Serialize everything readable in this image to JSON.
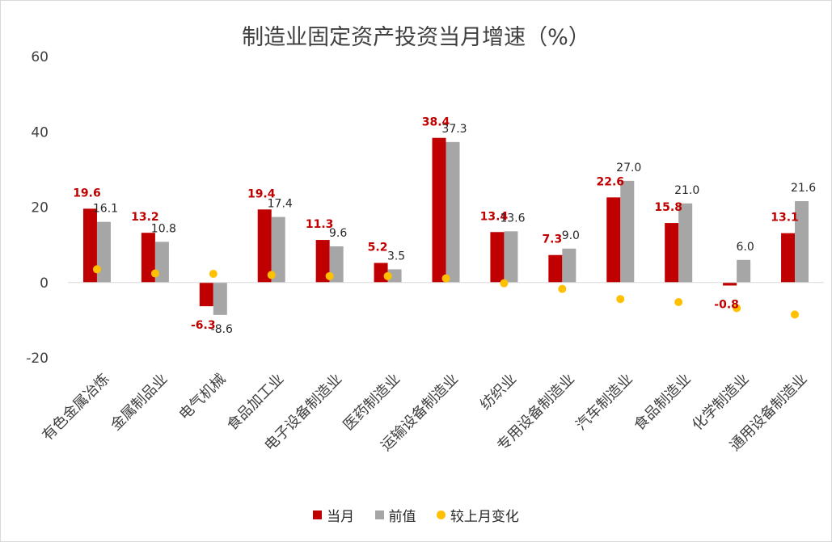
{
  "chart_data": {
    "type": "bar",
    "title": "制造业固定资产投资当月增速（%）",
    "ylim": [
      -20,
      60
    ],
    "yticks": [
      60,
      40,
      20,
      0,
      -20
    ],
    "grid": false,
    "legend_position": "bottom",
    "categories": [
      "有色金属冶炼",
      "金属制品业",
      "电气机械",
      "食品加工业",
      "电子设备制造业",
      "医药制造业",
      "运输设备制造业",
      "纺织业",
      "专用设备制造业",
      "汽车制造业",
      "食品制造业",
      "化学制造业",
      "通用设备制造业"
    ],
    "series": [
      {
        "name": "当月",
        "type": "bar",
        "color": "#c00000",
        "label_color": "#c00000",
        "values": [
          19.6,
          13.2,
          -6.3,
          19.4,
          11.3,
          5.2,
          38.4,
          13.4,
          7.3,
          22.6,
          15.8,
          -0.8,
          13.1
        ],
        "labels": [
          "19.6",
          "13.2",
          "-6.3",
          "19.4",
          "11.3",
          "5.2",
          "38.4",
          "13.4",
          "7.3",
          "22.6",
          "15.8",
          "-0.8",
          "13.1"
        ]
      },
      {
        "name": "前值",
        "type": "bar",
        "color": "#a6a6a6",
        "label_color": "#262626",
        "values": [
          16.1,
          10.8,
          -8.6,
          17.4,
          9.6,
          3.5,
          37.3,
          13.6,
          9.0,
          27.0,
          21.0,
          6.0,
          21.6
        ],
        "labels": [
          "16.1",
          "10.8",
          "-8.6",
          "17.4",
          "9.6",
          "3.5",
          "37.3",
          "13.6",
          "9.0",
          "27.0",
          "21.0",
          "6.0",
          "21.6"
        ]
      },
      {
        "name": "较上月变化",
        "type": "scatter",
        "color": "#ffc000",
        "values": [
          3.5,
          2.4,
          2.3,
          2.0,
          1.7,
          1.7,
          1.1,
          -0.2,
          -1.7,
          -4.4,
          -5.2,
          -6.8,
          -8.5
        ]
      }
    ]
  }
}
